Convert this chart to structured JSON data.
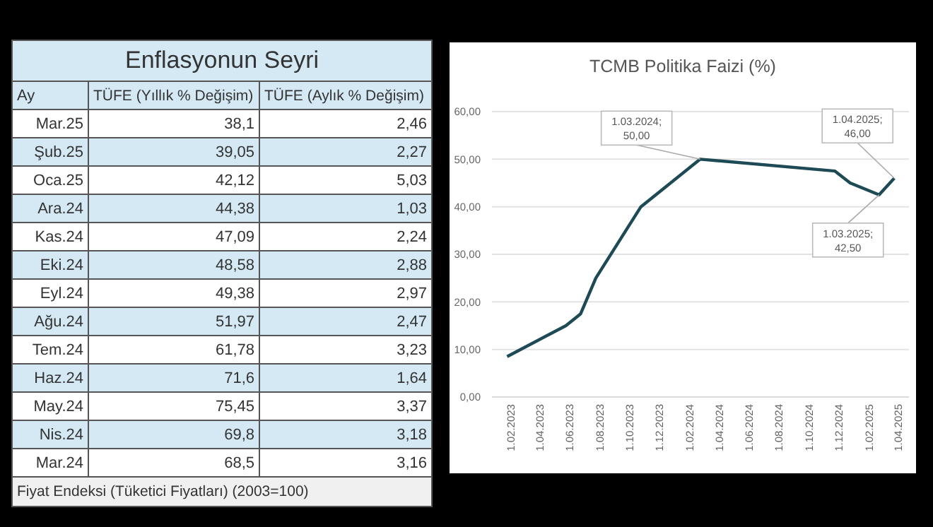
{
  "chart_data": [
    {
      "type": "other",
      "title": "Enflasyonun Seyri",
      "xlabel": "Ay",
      "categories": [
        "Mar.25",
        "Şub.25",
        "Oca.25",
        "Ara.24",
        "Kas.24",
        "Eki.24",
        "Eyl.24",
        "Ağu.24",
        "Tem.24",
        "Haz.24",
        "May.24",
        "Nis.24",
        "Mar.24"
      ],
      "series": [
        {
          "name": "TÜFE (Yıllık % Değişim)",
          "colors": [
            "#ffffff",
            "#d5e9f5",
            "#ffffff",
            "#d5e9f5",
            "#ffffff",
            "#d5e9f5",
            "#ffffff",
            "#d5e9f5",
            "#ffffff",
            "#d5e9f5",
            "#ffffff",
            "#d5e9f5",
            "#ffffff"
          ],
          "values": [
            38.1,
            39.05,
            42.12,
            44.38,
            47.09,
            48.58,
            49.38,
            51.97,
            61.78,
            71.6,
            75.45,
            69.8,
            68.5
          ],
          "value_labels": [
            "38,1",
            "39,05",
            "42,12",
            "44,38",
            "47,09",
            "48,58",
            "49,38",
            "51,97",
            "61,78",
            "71,6",
            "75,45",
            "69,8",
            "68,5"
          ]
        },
        {
          "name": "TÜFE (Aylık % Değişim)",
          "colors": [
            "#ffffff",
            "#d5e9f5",
            "#ffffff",
            "#d5e9f5",
            "#ffffff",
            "#d5e9f5",
            "#ffffff",
            "#d5e9f5",
            "#ffffff",
            "#d5e9f5",
            "#ffffff",
            "#d5e9f5",
            "#ffffff"
          ],
          "values": [
            2.46,
            2.27,
            5.03,
            1.03,
            2.24,
            2.88,
            2.97,
            2.47,
            3.23,
            1.64,
            3.37,
            3.18,
            3.16
          ],
          "value_labels": [
            "2,46",
            "2,27",
            "5,03",
            "1,03",
            "2,24",
            "2,88",
            "2,97",
            "2,47",
            "3,23",
            "1,64",
            "3,37",
            "3,18",
            "3,16"
          ]
        }
      ],
      "annotations": [
        "Fiyat Endeksi (Tüketici Fiyatları) (2003=100)"
      ]
    },
    {
      "type": "line",
      "title": "TCMB Politika Faizi (%)",
      "x": [
        "2023-02-01",
        "2023-06-01",
        "2023-07-01",
        "2023-08-01",
        "2023-11-01",
        "2024-03-01",
        "2024-12-01",
        "2025-01-01",
        "2025-03-01",
        "2025-04-01"
      ],
      "series": [
        {
          "color": "#1d4a55",
          "values": [
            8.5,
            15,
            17.5,
            25,
            40,
            50,
            47.5,
            45,
            42.5,
            46
          ]
        }
      ],
      "xlim": [
        "2023-01-01",
        "2025-05-01"
      ],
      "xticks": [
        {
          "value": "2023-02-01",
          "label": "1.02.2023"
        },
        {
          "value": "2023-04-01",
          "label": "1.04.2023"
        },
        {
          "value": "2023-06-01",
          "label": "1.06.2023"
        },
        {
          "value": "2023-08-01",
          "label": "1.08.2023"
        },
        {
          "value": "2023-10-01",
          "label": "1.10.2023"
        },
        {
          "value": "2023-12-01",
          "label": "1.12.2023"
        },
        {
          "value": "2024-02-01",
          "label": "1.02.2024"
        },
        {
          "value": "2024-04-01",
          "label": "1.04.2024"
        },
        {
          "value": "2024-06-01",
          "label": "1.06.2024"
        },
        {
          "value": "2024-08-01",
          "label": "1.08.2024"
        },
        {
          "value": "2024-10-01",
          "label": "1.10.2024"
        },
        {
          "value": "2024-12-01",
          "label": "1.12.2024"
        },
        {
          "value": "2025-02-01",
          "label": "1.02.2025"
        },
        {
          "value": "2025-04-01",
          "label": "1.04.2025"
        }
      ],
      "ylim": [
        0,
        60
      ],
      "yticks": [
        {
          "value": 0,
          "label": "0,00"
        },
        {
          "value": 10,
          "label": "10,00"
        },
        {
          "value": 20,
          "label": "20,00"
        },
        {
          "value": 30,
          "label": "30,00"
        },
        {
          "value": 40,
          "label": "40,00"
        },
        {
          "value": 50,
          "label": "50,00"
        },
        {
          "value": 60,
          "label": "60,00"
        }
      ],
      "grid": "y",
      "marker": "none",
      "line_style": "solid",
      "annotations": [
        {
          "text": "1.03.2024;\n50,00",
          "x": "2024-03-01",
          "y": 50
        },
        {
          "text": "1.04.2025;\n46,00",
          "x": "2025-04-01",
          "y": 46
        },
        {
          "text": "1.03.2025;\n42,50",
          "x": "2025-03-01",
          "y": 42.5
        }
      ]
    }
  ]
}
